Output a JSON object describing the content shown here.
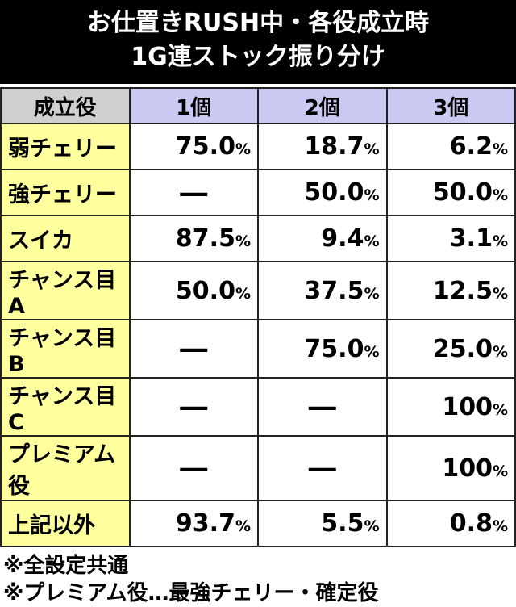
{
  "header": {
    "title_lines": [
      "お仕置きRUSH中・各役成立時",
      "1G連ストック振り分け"
    ]
  },
  "table": {
    "columns": [
      "成立役",
      "1個",
      "2個",
      "3個"
    ],
    "rows": [
      [
        "弱チェリー",
        "75.0%",
        "18.7%",
        "6.2%"
      ],
      [
        "強チェリー",
        "―",
        "50.0%",
        "50.0%"
      ],
      [
        "スイカ",
        "87.5%",
        "9.4%",
        "3.1%"
      ],
      [
        "チャンス目A",
        "50.0%",
        "37.5%",
        "12.5%"
      ],
      [
        "チャンス目B",
        "―",
        "75.0%",
        "25.0%"
      ],
      [
        "チャンス目C",
        "―",
        "―",
        "100%"
      ],
      [
        "プレミアム役",
        "―",
        "―",
        "100%"
      ],
      [
        "上記以外",
        "93.7%",
        "5.5%",
        "0.8%"
      ]
    ]
  },
  "notes": [
    "※全設定共通",
    "※プレミアム役…最強チェリー・確定役"
  ]
}
